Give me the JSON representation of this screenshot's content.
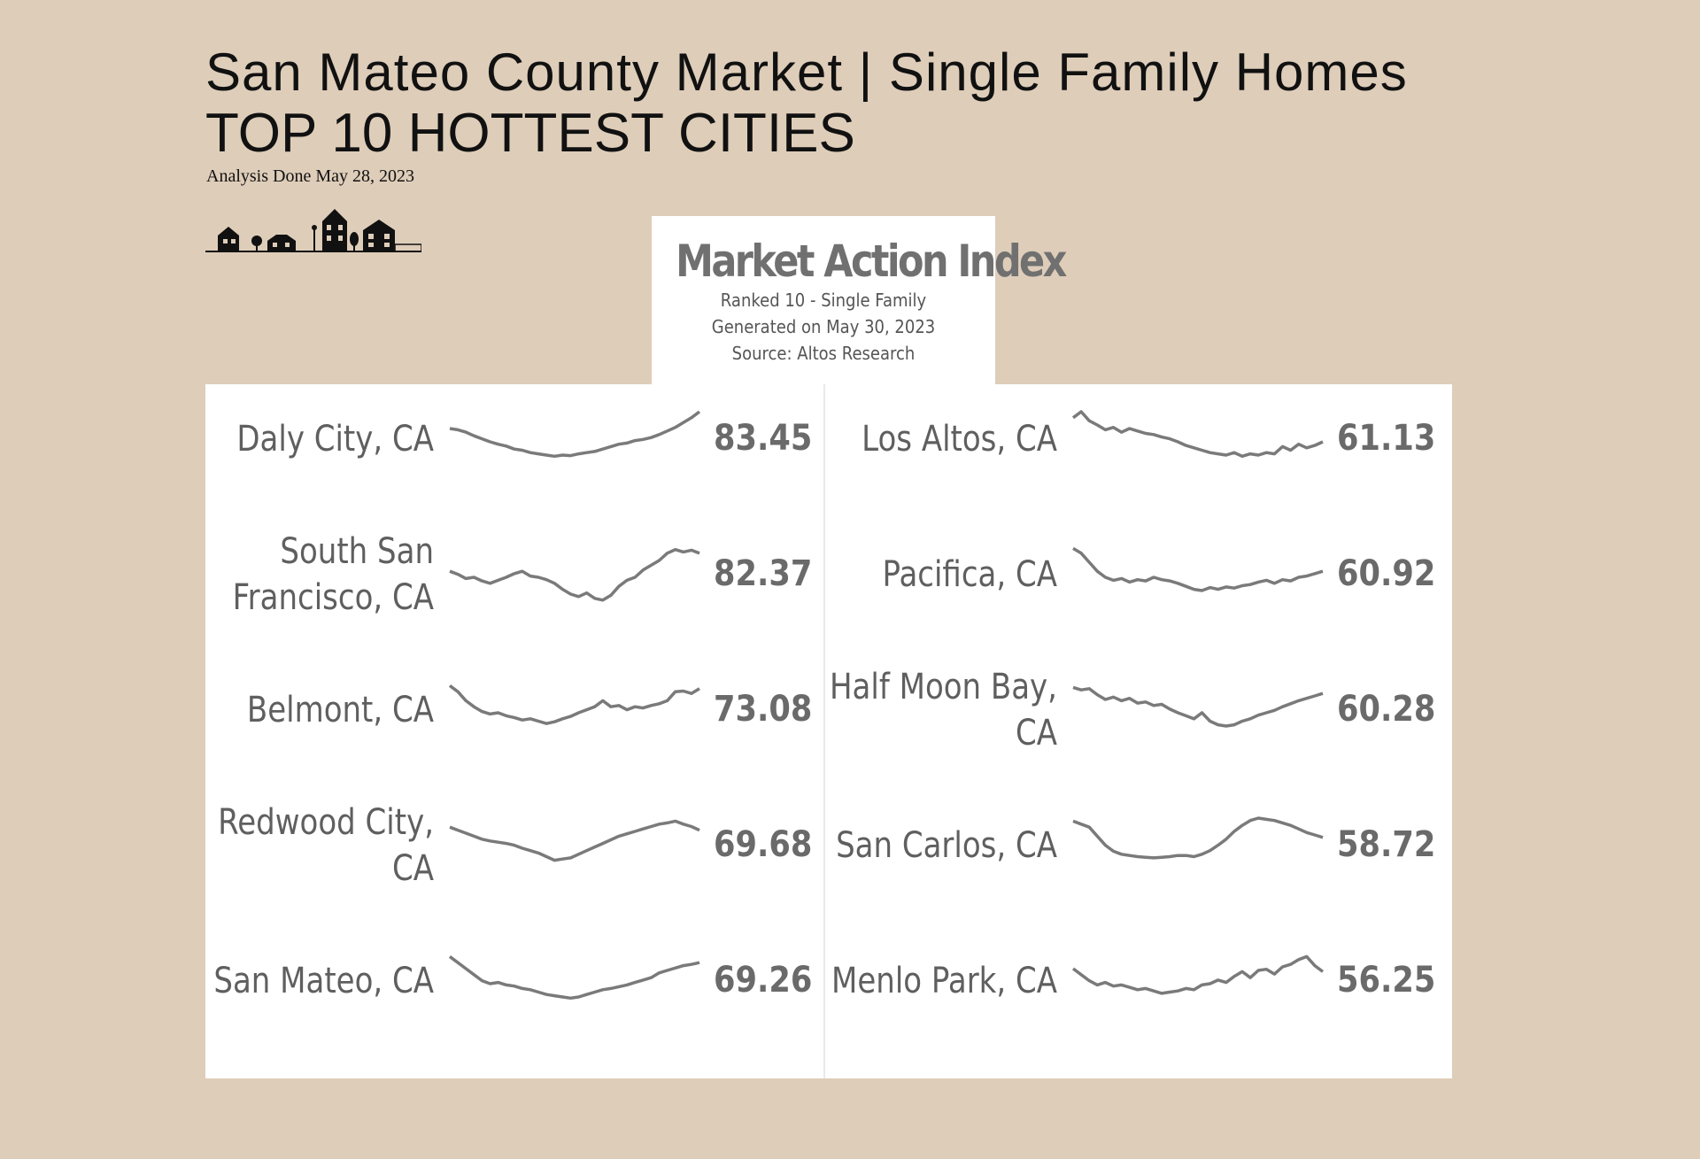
{
  "header": {
    "title": "San Mateo County Market |  Single Family Homes",
    "subtitle": "TOP 10 HOTTEST CITIES",
    "analysis_date": "Analysis Done May 28, 2023"
  },
  "panel": {
    "title": "Market Action Index",
    "ranked": "Ranked 10 - Single Family",
    "generated": "Generated on May 30, 2023",
    "source": "Source: Altos Research"
  },
  "colors": {
    "background": "#decdb9",
    "line": "#7a7a7a",
    "value": "#6a6a6a",
    "city": "#5f5f5f"
  },
  "chart_data": {
    "type": "line",
    "title": "Market Action Index",
    "series": [
      {
        "name": "Daly City, CA",
        "value": "83.45",
        "values": [
          0.72,
          0.7,
          0.66,
          0.6,
          0.55,
          0.5,
          0.46,
          0.43,
          0.38,
          0.36,
          0.32,
          0.3,
          0.28,
          0.26,
          0.28,
          0.27,
          0.3,
          0.32,
          0.34,
          0.38,
          0.42,
          0.46,
          0.48,
          0.52,
          0.54,
          0.57,
          0.62,
          0.68,
          0.74,
          0.82,
          0.9,
          1.0
        ]
      },
      {
        "name": "South San Francisco, CA",
        "value": "82.37",
        "values": [
          0.6,
          0.55,
          0.48,
          0.5,
          0.44,
          0.4,
          0.45,
          0.5,
          0.56,
          0.6,
          0.52,
          0.5,
          0.46,
          0.4,
          0.3,
          0.22,
          0.18,
          0.24,
          0.15,
          0.12,
          0.2,
          0.35,
          0.45,
          0.5,
          0.62,
          0.7,
          0.78,
          0.9,
          0.96,
          0.92,
          0.95,
          0.9
        ]
      },
      {
        "name": "Belmont, CA",
        "value": "73.08",
        "values": [
          0.95,
          0.85,
          0.7,
          0.6,
          0.52,
          0.48,
          0.5,
          0.45,
          0.42,
          0.38,
          0.4,
          0.36,
          0.32,
          0.35,
          0.4,
          0.44,
          0.5,
          0.55,
          0.6,
          0.7,
          0.6,
          0.62,
          0.55,
          0.6,
          0.58,
          0.62,
          0.65,
          0.7,
          0.85,
          0.86,
          0.82,
          0.9
        ]
      },
      {
        "name": "Redwood City, CA",
        "value": "69.68",
        "values": [
          0.85,
          0.8,
          0.75,
          0.7,
          0.65,
          0.62,
          0.6,
          0.58,
          0.55,
          0.5,
          0.46,
          0.42,
          0.36,
          0.3,
          0.32,
          0.34,
          0.4,
          0.46,
          0.52,
          0.58,
          0.64,
          0.7,
          0.74,
          0.78,
          0.82,
          0.86,
          0.9,
          0.92,
          0.95,
          0.9,
          0.86,
          0.8
        ]
      },
      {
        "name": "San Mateo, CA",
        "value": "69.26",
        "values": [
          0.95,
          0.85,
          0.75,
          0.65,
          0.55,
          0.5,
          0.52,
          0.48,
          0.46,
          0.42,
          0.4,
          0.36,
          0.32,
          0.3,
          0.28,
          0.26,
          0.28,
          0.32,
          0.36,
          0.4,
          0.42,
          0.45,
          0.48,
          0.52,
          0.56,
          0.6,
          0.68,
          0.72,
          0.76,
          0.8,
          0.82,
          0.85
        ]
      },
      {
        "name": "Los Altos, CA",
        "value": "61.13",
        "values": [
          0.9,
          1.0,
          0.85,
          0.78,
          0.7,
          0.74,
          0.66,
          0.72,
          0.68,
          0.64,
          0.62,
          0.58,
          0.55,
          0.5,
          0.44,
          0.4,
          0.36,
          0.32,
          0.3,
          0.28,
          0.32,
          0.26,
          0.3,
          0.28,
          0.32,
          0.3,
          0.42,
          0.36,
          0.46,
          0.4,
          0.44,
          0.5
        ]
      },
      {
        "name": "Pacifica, CA",
        "value": "60.92",
        "values": [
          0.98,
          0.9,
          0.75,
          0.6,
          0.5,
          0.45,
          0.48,
          0.42,
          0.46,
          0.44,
          0.5,
          0.46,
          0.44,
          0.4,
          0.35,
          0.3,
          0.28,
          0.33,
          0.3,
          0.34,
          0.32,
          0.36,
          0.38,
          0.42,
          0.45,
          0.4,
          0.46,
          0.44,
          0.5,
          0.52,
          0.56,
          0.6
        ]
      },
      {
        "name": "Half Moon Bay, CA",
        "value": "60.28",
        "values": [
          0.92,
          0.88,
          0.9,
          0.8,
          0.72,
          0.76,
          0.7,
          0.74,
          0.66,
          0.68,
          0.62,
          0.64,
          0.56,
          0.5,
          0.45,
          0.4,
          0.5,
          0.36,
          0.3,
          0.28,
          0.3,
          0.36,
          0.4,
          0.46,
          0.5,
          0.54,
          0.6,
          0.65,
          0.7,
          0.74,
          0.78,
          0.82
        ]
      },
      {
        "name": "San Carlos, CA",
        "value": "58.72",
        "values": [
          0.95,
          0.9,
          0.85,
          0.7,
          0.55,
          0.45,
          0.4,
          0.38,
          0.36,
          0.35,
          0.34,
          0.35,
          0.36,
          0.38,
          0.38,
          0.36,
          0.4,
          0.46,
          0.55,
          0.65,
          0.78,
          0.88,
          0.96,
          1.0,
          0.98,
          0.96,
          0.92,
          0.88,
          0.82,
          0.76,
          0.72,
          0.68
        ]
      },
      {
        "name": "Menlo Park, CA",
        "value": "56.25",
        "values": [
          0.75,
          0.65,
          0.55,
          0.48,
          0.52,
          0.46,
          0.48,
          0.44,
          0.4,
          0.42,
          0.38,
          0.34,
          0.36,
          0.38,
          0.42,
          0.4,
          0.48,
          0.5,
          0.56,
          0.52,
          0.62,
          0.7,
          0.6,
          0.72,
          0.74,
          0.66,
          0.78,
          0.82,
          0.9,
          0.95,
          0.8,
          0.7
        ]
      }
    ]
  },
  "rows": [
    {
      "city": "Daly City, CA",
      "value": "83.45"
    },
    {
      "city": "South San\nFrancisco, CA",
      "value": "82.37"
    },
    {
      "city": "Belmont, CA",
      "value": "73.08"
    },
    {
      "city": "Redwood City,\nCA",
      "value": "69.68"
    },
    {
      "city": "San Mateo, CA",
      "value": "69.26"
    },
    {
      "city": "Los Altos, CA",
      "value": "61.13"
    },
    {
      "city": "Pacifica, CA",
      "value": "60.92"
    },
    {
      "city": "Half Moon Bay,\nCA",
      "value": "60.28"
    },
    {
      "city": "San Carlos, CA",
      "value": "58.72"
    },
    {
      "city": "Menlo Park, CA",
      "value": "56.25"
    }
  ]
}
